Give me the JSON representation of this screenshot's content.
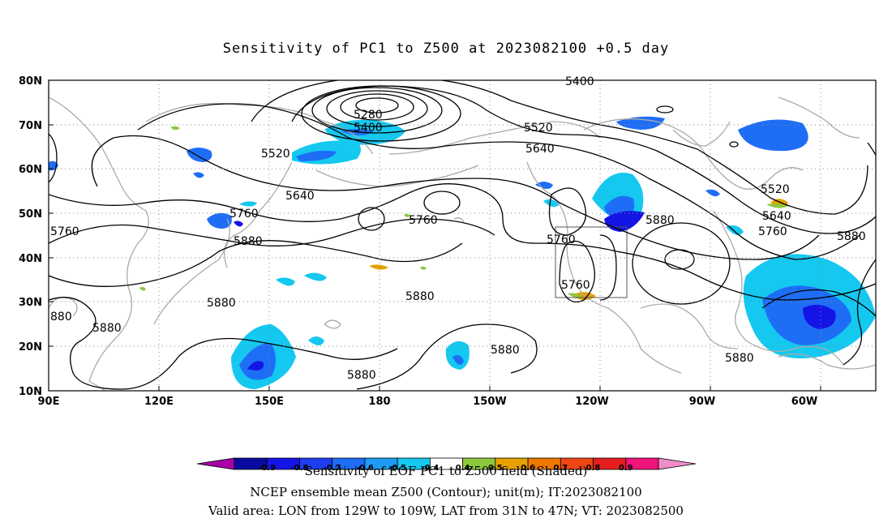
{
  "title": "Sensitivity of PC1 to Z500 at 2023082100 +0.5 day",
  "axes": {
    "lat_labels": [
      "80N",
      "70N",
      "60N",
      "50N",
      "40N",
      "30N",
      "20N",
      "10N"
    ],
    "lon_labels": [
      "90E",
      "120E",
      "150E",
      "180",
      "150W",
      "120W",
      "90W",
      "60W"
    ]
  },
  "contours": {
    "labels": [
      {
        "text": "5400"
      },
      {
        "text": "5280"
      },
      {
        "text": "5400"
      },
      {
        "text": "5520"
      },
      {
        "text": "5520"
      },
      {
        "text": "5640"
      },
      {
        "text": "5640"
      },
      {
        "text": "5520"
      },
      {
        "text": "5640"
      },
      {
        "text": "5760"
      },
      {
        "text": "5760"
      },
      {
        "text": "5760"
      },
      {
        "text": "5880"
      },
      {
        "text": "5760"
      },
      {
        "text": "5880"
      },
      {
        "text": "5880"
      },
      {
        "text": "5880"
      },
      {
        "text": "5880"
      },
      {
        "text": "5880"
      },
      {
        "text": "5760"
      },
      {
        "text": "5880"
      },
      {
        "text": "5880"
      },
      {
        "text": "5880"
      },
      {
        "text": "5760"
      },
      {
        "text": "880"
      }
    ]
  },
  "colorbar": {
    "colors": [
      "#a800a8",
      "#0a0aa0",
      "#1414e6",
      "#1e3cf0",
      "#1e6ef5",
      "#1e9cf5",
      "#14c8f0",
      "#ffffff",
      "#8cc83c",
      "#e6a000",
      "#f07800",
      "#f04614",
      "#e61e1e",
      "#f0147a",
      "#f08cc8"
    ],
    "labels": [
      "-0.9",
      "-0.8",
      "-0.7",
      "-0.6",
      "-0.5",
      "-0.4",
      "0.4",
      "0.5",
      "0.6",
      "0.7",
      "0.8",
      "0.9"
    ],
    "overlay_text": "Sensitivity of EOF PC1 to Z500 field (Shaded)"
  },
  "captions": {
    "line1": "Sensitivity of EOF PC1 to Z500 field (Shaded)",
    "line2": "NCEP ensemble mean Z500 (Contour); unit(m); IT:2023082100",
    "line3": "Valid area: LON from 129W to 109W, LAT from 31N to 47N; VT: 2023082500"
  },
  "colors": {
    "coast": "#aaaaaa",
    "contour": "#000000",
    "neg_light": "#14c8f0",
    "neg_mid": "#1e6ef5",
    "neg_dark": "#1414e6",
    "pos_green": "#8cc83c",
    "pos_orange": "#e6a000"
  }
}
